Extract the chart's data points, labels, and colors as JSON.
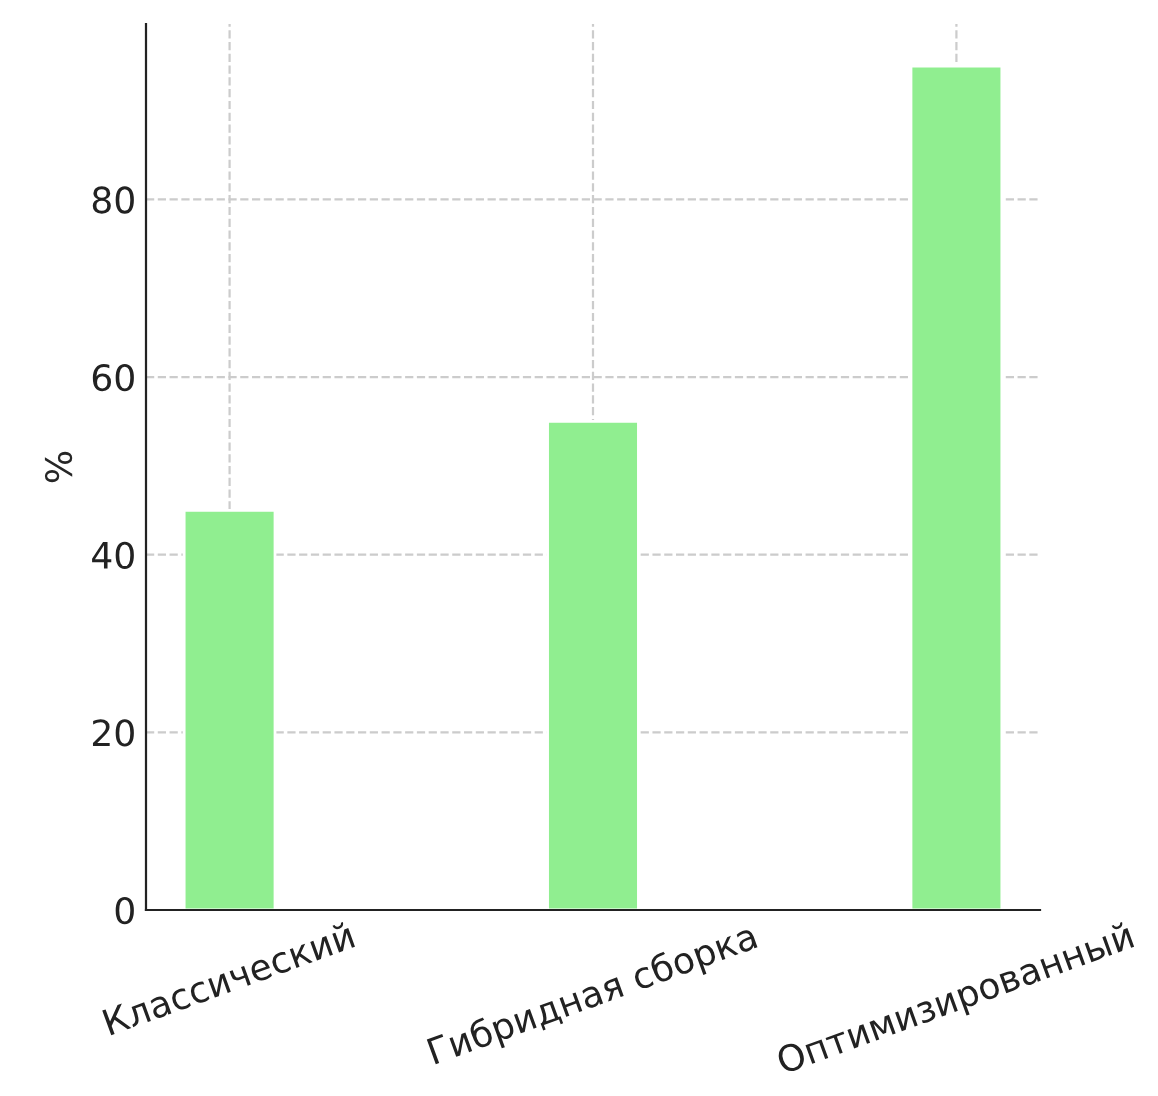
{
  "chart_data": {
    "type": "bar",
    "ylabel": "%",
    "categories": [
      "Классический",
      "Гибридная сборка",
      "Оптимизированный"
    ],
    "values": [
      45,
      55,
      95
    ],
    "color": "#90ee90",
    "ylim": [
      0,
      99.75
    ],
    "yticks": [
      0,
      20,
      40,
      60,
      80
    ],
    "grid": true
  }
}
